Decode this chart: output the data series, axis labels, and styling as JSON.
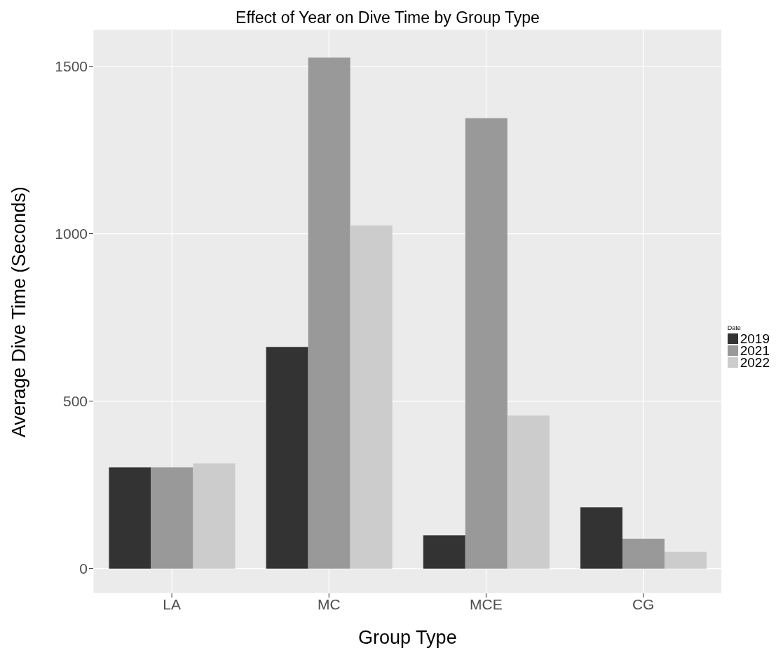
{
  "chart_data": {
    "type": "bar",
    "title": "Effect of Year on Dive Time by Group Type",
    "xlabel": "Group Type",
    "ylabel": "Average Dive Time (Seconds)",
    "legend_title": "Date",
    "categories": [
      "LA",
      "MC",
      "MCE",
      "CG"
    ],
    "series": [
      {
        "name": "2019",
        "color": "#333333",
        "values": [
          302,
          662,
          99,
          183
        ]
      },
      {
        "name": "2021",
        "color": "#999999",
        "values": [
          302,
          1526,
          1345,
          89
        ]
      },
      {
        "name": "2022",
        "color": "#cccccc",
        "values": [
          314,
          1025,
          457,
          50
        ]
      }
    ],
    "ylim": [
      -74,
      1610
    ],
    "yticks": [
      0,
      500,
      1000,
      1500
    ],
    "grid": true,
    "legend": "right"
  }
}
